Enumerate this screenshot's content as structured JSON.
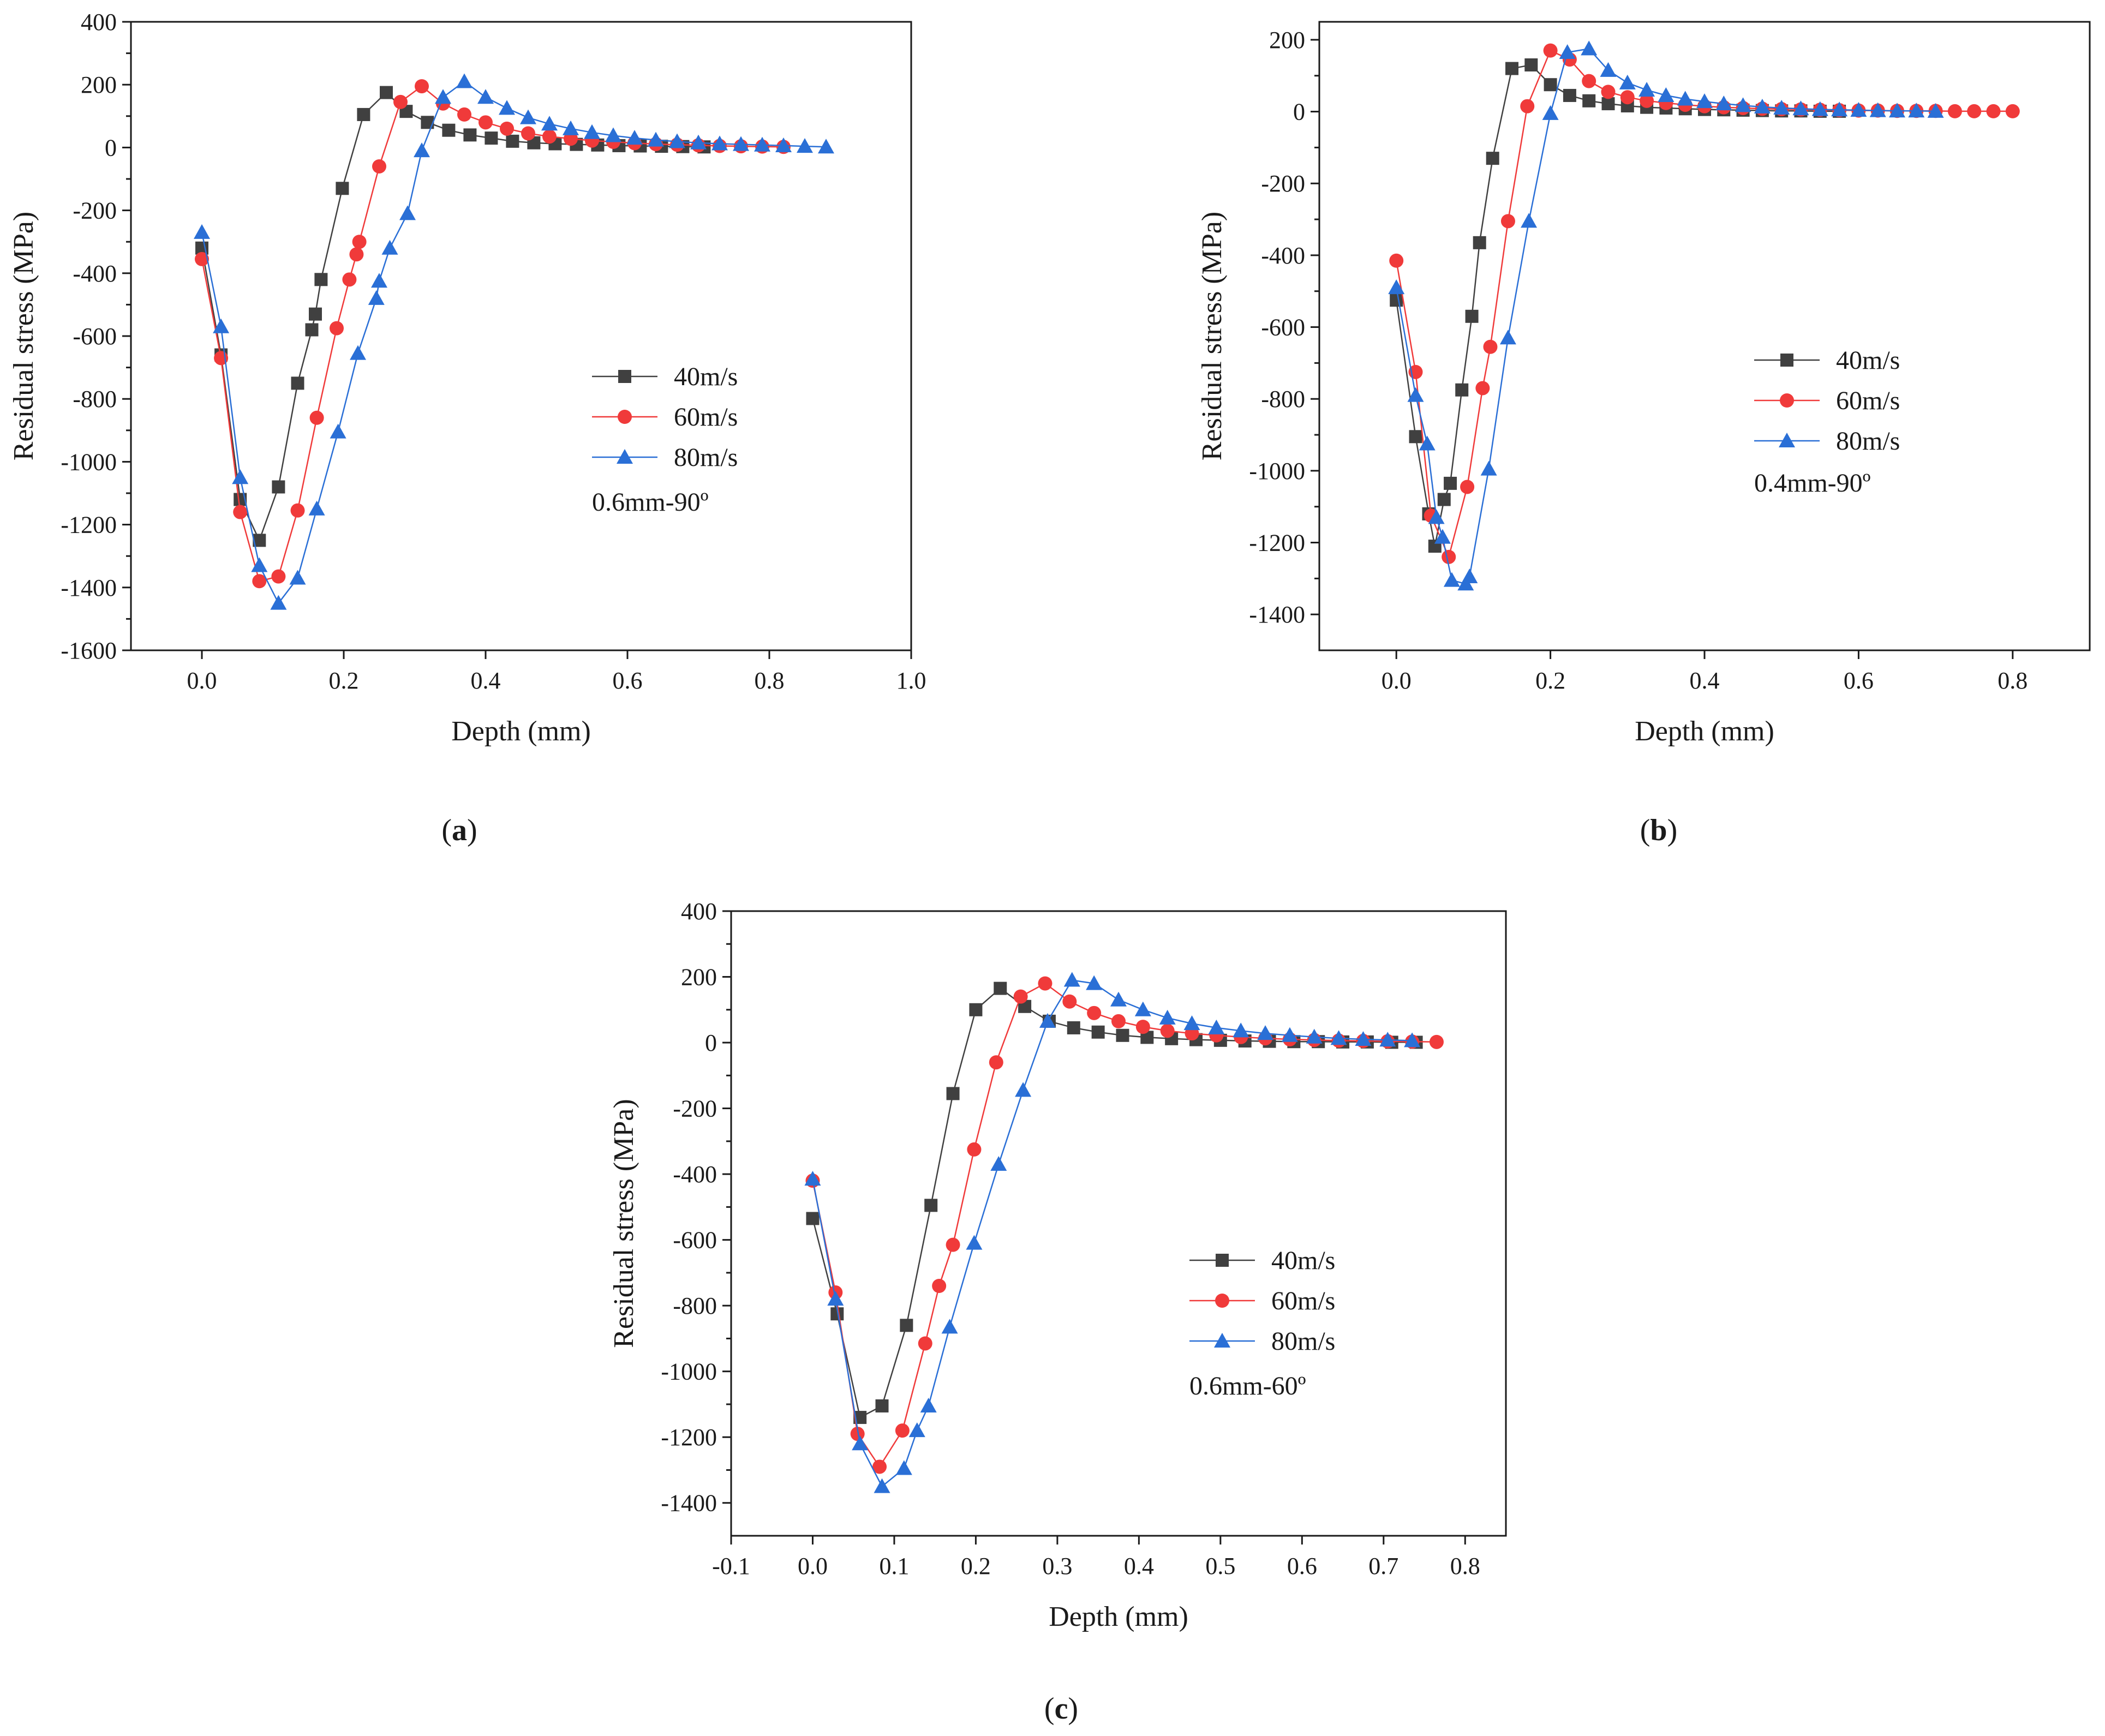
{
  "colors": {
    "s40": "#404040",
    "s60": "#f03a3a",
    "s80": "#2a6fd6",
    "axis": "#1a1a1a"
  },
  "chart_data": [
    {
      "id": "a",
      "type": "line",
      "panel_label": "a",
      "annotation": "0.6mm-90º",
      "xlabel": "Depth (mm)",
      "ylabel": "Residual stress (MPa)",
      "xlim": [
        -0.1,
        1.0
      ],
      "ylim": [
        -1600,
        400
      ],
      "xticks": [
        0.0,
        0.2,
        0.4,
        0.6,
        0.8,
        1.0
      ],
      "xtick_labels": [
        "0.0",
        "0.2",
        "0.4",
        "0.6",
        "0.8",
        "1.0"
      ],
      "yticks": [
        -1600,
        -1400,
        -1200,
        -1000,
        -800,
        -600,
        -400,
        -200,
        0,
        200,
        400
      ],
      "ytick_labels": [
        "-1600",
        "-1400",
        "-1200",
        "-1000",
        "-800",
        "-600",
        "-400",
        "-200",
        "0",
        "200",
        "400"
      ],
      "legend_position": "right",
      "grid": false,
      "series": [
        {
          "name": "40m/s",
          "marker": "square",
          "color": "#404040",
          "x": [
            0.0,
            0.027,
            0.054,
            0.081,
            0.108,
            0.135,
            0.155,
            0.16,
            0.168,
            0.198,
            0.228,
            0.26,
            0.288,
            0.318,
            0.348,
            0.378,
            0.408,
            0.438,
            0.468,
            0.498,
            0.528,
            0.558,
            0.588,
            0.618,
            0.648,
            0.678,
            0.708
          ],
          "y": [
            -320,
            -660,
            -1120,
            -1250,
            -1080,
            -750,
            -580,
            -530,
            -420,
            -130,
            105,
            175,
            115,
            80,
            55,
            40,
            30,
            20,
            15,
            12,
            10,
            8,
            6,
            5,
            4,
            3,
            2
          ]
        },
        {
          "name": "60m/s",
          "marker": "circle",
          "color": "#f03a3a",
          "x": [
            0.0,
            0.027,
            0.054,
            0.081,
            0.108,
            0.135,
            0.162,
            0.19,
            0.208,
            0.218,
            0.222,
            0.25,
            0.28,
            0.31,
            0.34,
            0.37,
            0.4,
            0.43,
            0.46,
            0.49,
            0.52,
            0.55,
            0.58,
            0.61,
            0.64,
            0.67,
            0.7,
            0.73,
            0.76,
            0.79,
            0.82
          ],
          "y": [
            -355,
            -670,
            -1160,
            -1380,
            -1365,
            -1155,
            -860,
            -575,
            -420,
            -340,
            -300,
            -60,
            145,
            195,
            140,
            105,
            80,
            60,
            45,
            35,
            28,
            22,
            18,
            14,
            11,
            9,
            7,
            5,
            4,
            3,
            2
          ]
        },
        {
          "name": "80m/s",
          "marker": "triangle",
          "color": "#2a6fd6",
          "x": [
            0.0,
            0.027,
            0.054,
            0.081,
            0.108,
            0.135,
            0.162,
            0.192,
            0.22,
            0.246,
            0.25,
            0.265,
            0.29,
            0.31,
            0.34,
            0.37,
            0.4,
            0.43,
            0.46,
            0.49,
            0.52,
            0.55,
            0.58,
            0.61,
            0.64,
            0.67,
            0.7,
            0.73,
            0.76,
            0.79,
            0.82,
            0.85,
            0.88
          ],
          "y": [
            -270,
            -570,
            -1050,
            -1330,
            -1450,
            -1370,
            -1150,
            -905,
            -655,
            -480,
            -425,
            -320,
            -210,
            -10,
            160,
            210,
            160,
            125,
            95,
            75,
            60,
            48,
            38,
            30,
            24,
            19,
            15,
            12,
            10,
            8,
            6,
            4,
            2
          ]
        }
      ]
    },
    {
      "id": "b",
      "type": "line",
      "panel_label": "b",
      "annotation": "0.4mm-90º",
      "xlabel": "Depth (mm)",
      "ylabel": "Residual stress (MPa)",
      "xlim": [
        -0.1,
        0.9
      ],
      "ylim": [
        -1500,
        250
      ],
      "xticks": [
        0.0,
        0.2,
        0.4,
        0.6,
        0.8
      ],
      "xtick_labels": [
        "0.0",
        "0.2",
        "0.4",
        "0.6",
        "0.8"
      ],
      "yticks": [
        -1400,
        -1200,
        -1000,
        -800,
        -600,
        -400,
        -200,
        0,
        200
      ],
      "ytick_labels": [
        "-1400",
        "-1200",
        "-1000",
        "-800",
        "-600",
        "-400",
        "-200",
        "0",
        "200"
      ],
      "legend_position": "right",
      "grid": false,
      "series": [
        {
          "name": "40m/s",
          "marker": "square",
          "color": "#404040",
          "x": [
            0.0,
            0.025,
            0.042,
            0.05,
            0.062,
            0.07,
            0.085,
            0.098,
            0.108,
            0.125,
            0.15,
            0.175,
            0.2,
            0.225,
            0.25,
            0.275,
            0.3,
            0.325,
            0.35,
            0.375,
            0.4,
            0.425,
            0.45,
            0.475,
            0.5,
            0.525,
            0.55,
            0.575
          ],
          "y": [
            -525,
            -905,
            -1120,
            -1210,
            -1080,
            -1035,
            -775,
            -570,
            -365,
            -130,
            120,
            130,
            75,
            45,
            30,
            22,
            16,
            12,
            10,
            8,
            6,
            5,
            4,
            3,
            2,
            2,
            1,
            1
          ]
        },
        {
          "name": "60m/s",
          "marker": "circle",
          "color": "#f03a3a",
          "x": [
            0.0,
            0.025,
            0.045,
            0.068,
            0.092,
            0.112,
            0.122,
            0.145,
            0.17,
            0.2,
            0.225,
            0.25,
            0.275,
            0.3,
            0.325,
            0.35,
            0.375,
            0.4,
            0.425,
            0.45,
            0.475,
            0.5,
            0.525,
            0.55,
            0.575,
            0.6,
            0.625,
            0.65,
            0.675,
            0.7,
            0.725,
            0.75,
            0.775,
            0.8
          ],
          "y": [
            -415,
            -725,
            -1125,
            -1240,
            -1045,
            -770,
            -655,
            -305,
            15,
            170,
            145,
            85,
            55,
            40,
            30,
            24,
            19,
            15,
            12,
            10,
            8,
            7,
            6,
            5,
            4,
            3,
            3,
            2,
            2,
            2,
            1,
            1,
            1,
            1
          ]
        },
        {
          "name": "80m/s",
          "marker": "triangle",
          "color": "#2a6fd6",
          "x": [
            0.0,
            0.025,
            0.04,
            0.052,
            0.06,
            0.072,
            0.09,
            0.095,
            0.12,
            0.145,
            0.172,
            0.2,
            0.222,
            0.25,
            0.275,
            0.3,
            0.325,
            0.35,
            0.375,
            0.4,
            0.425,
            0.45,
            0.475,
            0.5,
            0.525,
            0.55,
            0.575,
            0.6,
            0.625,
            0.65,
            0.675,
            0.7
          ],
          "y": [
            -490,
            -790,
            -925,
            -1130,
            -1185,
            -1305,
            -1315,
            -1295,
            -995,
            -630,
            -305,
            -5,
            165,
            175,
            115,
            80,
            60,
            45,
            35,
            28,
            22,
            17,
            13,
            10,
            8,
            6,
            5,
            4,
            3,
            2,
            2,
            1
          ]
        }
      ]
    },
    {
      "id": "c",
      "type": "line",
      "panel_label": "c",
      "annotation": "0.6mm-60º",
      "xlabel": "Depth (mm)",
      "ylabel": "Residual stress (MPa)",
      "xlim": [
        -0.1,
        0.85
      ],
      "ylim": [
        -1500,
        400
      ],
      "xticks": [
        -0.1,
        0.0,
        0.1,
        0.2,
        0.3,
        0.4,
        0.5,
        0.6,
        0.7,
        0.8
      ],
      "xtick_labels": [
        "-0.1",
        "0.0",
        "0.1",
        "0.2",
        "0.3",
        "0.4",
        "0.5",
        "0.6",
        "0.7",
        "0.8"
      ],
      "yticks": [
        -1400,
        -1200,
        -1000,
        -800,
        -600,
        -400,
        -200,
        0,
        200,
        400
      ],
      "ytick_labels": [
        "-1400",
        "-1200",
        "-1000",
        "-800",
        "-600",
        "-400",
        "-200",
        "0",
        "200",
        "400"
      ],
      "legend_position": "right",
      "grid": false,
      "series": [
        {
          "name": "40m/s",
          "marker": "square",
          "color": "#404040",
          "x": [
            0.0,
            0.03,
            0.058,
            0.085,
            0.115,
            0.145,
            0.172,
            0.2,
            0.23,
            0.26,
            0.29,
            0.32,
            0.35,
            0.38,
            0.41,
            0.44,
            0.47,
            0.5,
            0.53,
            0.56,
            0.59,
            0.62,
            0.65,
            0.68,
            0.71,
            0.74
          ],
          "y": [
            -535,
            -825,
            -1140,
            -1105,
            -860,
            -495,
            -155,
            100,
            165,
            110,
            65,
            45,
            32,
            22,
            16,
            12,
            9,
            7,
            5,
            4,
            3,
            3,
            2,
            2,
            1,
            1
          ]
        },
        {
          "name": "60m/s",
          "marker": "circle",
          "color": "#f03a3a",
          "x": [
            0.0,
            0.028,
            0.055,
            0.082,
            0.11,
            0.138,
            0.155,
            0.172,
            0.198,
            0.225,
            0.255,
            0.285,
            0.315,
            0.345,
            0.375,
            0.405,
            0.435,
            0.465,
            0.495,
            0.525,
            0.555,
            0.585,
            0.615,
            0.645,
            0.675,
            0.705,
            0.735,
            0.765
          ],
          "y": [
            -420,
            -760,
            -1190,
            -1290,
            -1180,
            -915,
            -740,
            -615,
            -325,
            -60,
            140,
            180,
            125,
            90,
            65,
            48,
            36,
            28,
            22,
            17,
            13,
            10,
            8,
            6,
            5,
            4,
            3,
            2
          ]
        },
        {
          "name": "80m/s",
          "marker": "triangle",
          "color": "#2a6fd6",
          "x": [
            0.0,
            0.028,
            0.058,
            0.085,
            0.112,
            0.128,
            0.142,
            0.168,
            0.198,
            0.228,
            0.258,
            0.288,
            0.318,
            0.345,
            0.375,
            0.405,
            0.435,
            0.465,
            0.495,
            0.525,
            0.555,
            0.585,
            0.615,
            0.645,
            0.675,
            0.705,
            0.735
          ],
          "y": [
            -415,
            -780,
            -1220,
            -1350,
            -1295,
            -1180,
            -1105,
            -865,
            -610,
            -370,
            -145,
            65,
            190,
            180,
            130,
            100,
            75,
            58,
            45,
            36,
            28,
            22,
            17,
            13,
            10,
            8,
            6
          ]
        }
      ]
    }
  ]
}
